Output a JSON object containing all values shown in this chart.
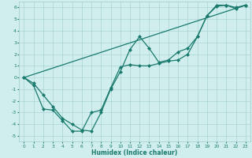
{
  "title": "",
  "xlabel": "Humidex (Indice chaleur)",
  "xlim": [
    -0.5,
    23.5
  ],
  "ylim": [
    -5.5,
    6.5
  ],
  "xtick_labels": [
    "0",
    "1",
    "2",
    "3",
    "4",
    "5",
    "6",
    "7",
    "8",
    "9",
    "10",
    "11",
    "12",
    "13",
    "14",
    "15",
    "16",
    "17",
    "18",
    "19",
    "20",
    "21",
    "22",
    "23"
  ],
  "xtick_vals": [
    0,
    1,
    2,
    3,
    4,
    5,
    6,
    7,
    8,
    9,
    10,
    11,
    12,
    13,
    14,
    15,
    16,
    17,
    18,
    19,
    20,
    21,
    22,
    23
  ],
  "ytick_vals": [
    -5,
    -4,
    -3,
    -2,
    -1,
    0,
    1,
    2,
    3,
    4,
    5,
    6
  ],
  "bg_color": "#d0eeee",
  "grid_color": "#a0cccc",
  "line_color": "#1a7a6e",
  "line1_x": [
    0,
    1,
    2,
    3,
    4,
    5,
    6,
    7,
    8,
    9,
    10,
    11,
    12,
    13,
    14,
    15,
    16,
    17,
    18,
    19,
    20,
    21,
    22,
    23
  ],
  "line1_y": [
    0.0,
    -0.7,
    -2.7,
    -2.8,
    -3.7,
    -4.6,
    -4.6,
    -3.0,
    -2.8,
    -0.9,
    0.9,
    1.1,
    1.0,
    1.0,
    1.2,
    1.4,
    1.5,
    2.0,
    3.5,
    5.3,
    6.2,
    6.2,
    6.0,
    6.2
  ],
  "line2_x": [
    0,
    1,
    2,
    3,
    4,
    5,
    6,
    7,
    8,
    9,
    10,
    11,
    12,
    13,
    14,
    15,
    16,
    17,
    18,
    19,
    20,
    21,
    22,
    23
  ],
  "line2_y": [
    0.0,
    -0.5,
    -1.5,
    -2.5,
    -3.5,
    -4.0,
    -4.5,
    -4.6,
    -3.0,
    -1.0,
    0.5,
    2.4,
    3.5,
    2.5,
    1.3,
    1.5,
    2.2,
    2.5,
    3.5,
    5.3,
    6.1,
    6.2,
    5.9,
    6.2
  ],
  "line3_x": [
    0,
    23
  ],
  "line3_y": [
    0.0,
    6.2
  ],
  "marker_size": 2.5,
  "linewidth": 0.9
}
